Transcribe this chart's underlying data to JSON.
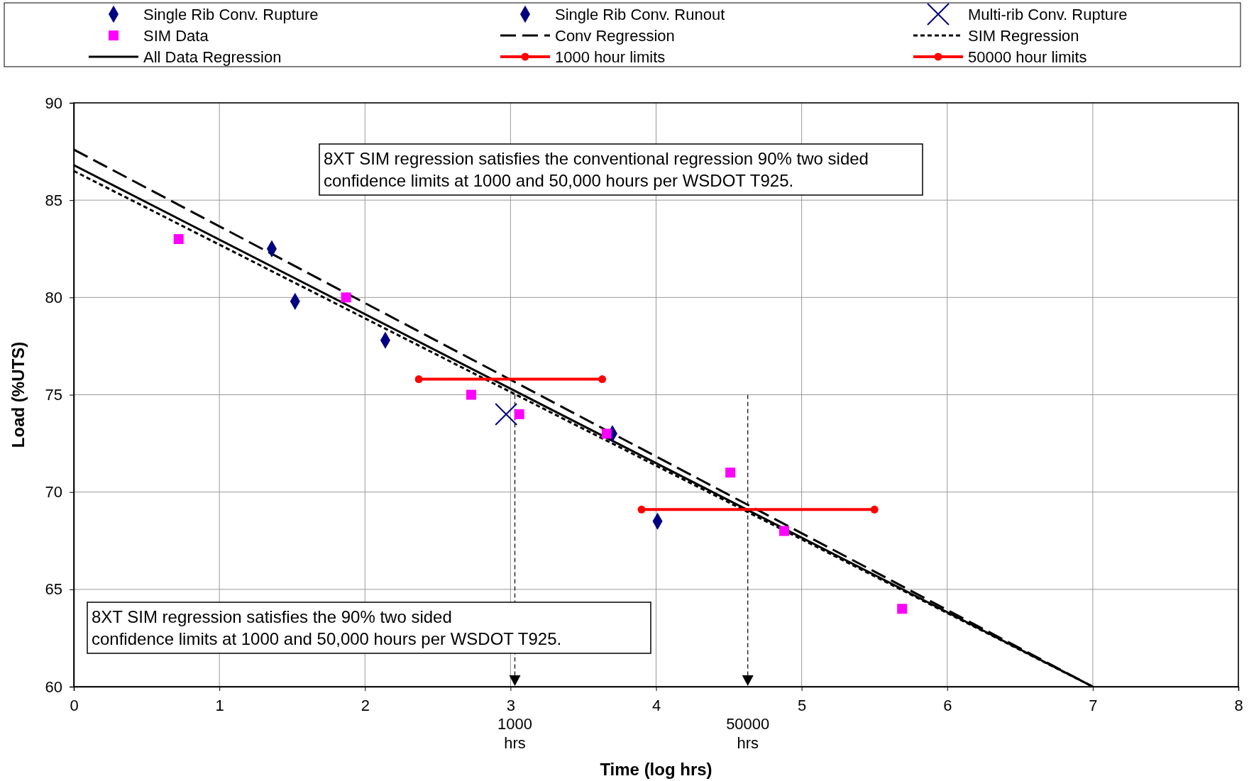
{
  "chart_data": {
    "type": "scatter",
    "xlabel": "Time (log hrs)",
    "ylabel": "Load (%UTS)",
    "xlim": [
      0,
      8
    ],
    "xticks": [
      0,
      1,
      2,
      3,
      4,
      5,
      6,
      7,
      8
    ],
    "ylim": [
      60,
      90
    ],
    "yticks": [
      60,
      65,
      70,
      75,
      80,
      85,
      90
    ],
    "grid": true,
    "legend": "top",
    "annotations": [
      "8XT SIM regression satisfies the conventional regression 90% two sided\nconfidence limits at 1000 and 50,000 hours per WSDOT T925.",
      "8XT SIM regression satisfies the 90% two sided\nconfidence limits at 1000 and 50,000 hours per WSDOT T925."
    ],
    "ref_lines": [
      {
        "axis": "x",
        "value": 3.03,
        "label": "1000\nhrs",
        "line_style": "dotted"
      },
      {
        "axis": "x",
        "value": 4.63,
        "label": "50000\nhrs",
        "line_style": "dotted"
      }
    ],
    "series": [
      {
        "name": "Single Rib Conv. Rupture",
        "marker": "diamond",
        "color": "#000080",
        "x": [
          1.36
        ],
        "values": [
          82.5
        ]
      },
      {
        "name": "Single Rib Conv. Runout",
        "marker": "diamond",
        "color": "#000080",
        "x": [
          1.52,
          2.14,
          3.7,
          4.01
        ],
        "values": [
          79.8,
          77.8,
          73,
          68.5
        ]
      },
      {
        "name": "Multi-rib Conv. Rupture",
        "marker": "cross",
        "color": "#000080",
        "x": [
          2.97
        ],
        "values": [
          74
        ]
      },
      {
        "name": "SIM Data",
        "marker": "square",
        "color": "#ff00ff",
        "x": [
          0.72,
          1.87,
          2.73,
          3.06,
          3.66,
          4.51,
          4.88,
          5.69
        ],
        "values": [
          83,
          80,
          75,
          74,
          73,
          71,
          68,
          64
        ]
      },
      {
        "name": "Conv Regression",
        "type": "line",
        "line_style": "dashed",
        "color": "#000000",
        "x": [
          0,
          7
        ],
        "values": [
          87.6,
          60
        ]
      },
      {
        "name": "SIM Regression",
        "type": "line",
        "line_style": "dotted",
        "color": "#000000",
        "x": [
          0,
          7
        ],
        "values": [
          86.5,
          60
        ]
      },
      {
        "name": "All Data Regression",
        "type": "line",
        "line_style": "solid",
        "color": "#000000",
        "x": [
          0,
          7
        ],
        "values": [
          86.8,
          60
        ]
      },
      {
        "name": "1000 hour limits",
        "type": "line",
        "marker": "circle",
        "line_style": "solid",
        "color": "#ff0000",
        "x": [
          2.37,
          3.63
        ],
        "values": [
          75.8,
          75.8
        ]
      },
      {
        "name": "50000 hour limits",
        "type": "line",
        "marker": "circle",
        "line_style": "solid",
        "color": "#ff0000",
        "x": [
          3.9,
          5.5
        ],
        "values": [
          69.1,
          69.1
        ]
      }
    ]
  }
}
